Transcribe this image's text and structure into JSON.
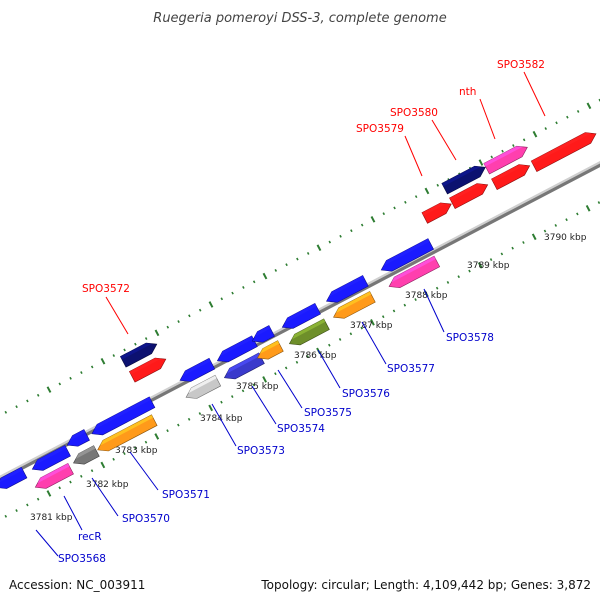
{
  "title": "Ruegeria pomeroyi DSS-3, complete genome",
  "footer": {
    "accession": "Accession: NC_003911",
    "summary": "Topology: circular; Length: 4,109,442 bp; Genes: 3,872"
  },
  "colors": {
    "forward_label": "#ff0000",
    "reverse_label": "#0000cc",
    "backbone": "#aaaaaa",
    "tick": "#2e7d32"
  },
  "tick_labels": [
    "3781 kbp",
    "3782 kbp",
    "3783 kbp",
    "3784 kbp",
    "3785 kbp",
    "3786 kbp",
    "3787 kbp",
    "3788 kbp",
    "3789 kbp",
    "3790 kbp"
  ],
  "forward_labels": [
    "SPO3572",
    "SPO3579",
    "SPO3580",
    "nth",
    "SPO3582"
  ],
  "reverse_labels": [
    "SPO3568",
    "recR",
    "SPO3570",
    "SPO3571",
    "SPO3573",
    "SPO3574",
    "SPO3575",
    "SPO3576",
    "SPO3577",
    "SPO3578"
  ]
}
